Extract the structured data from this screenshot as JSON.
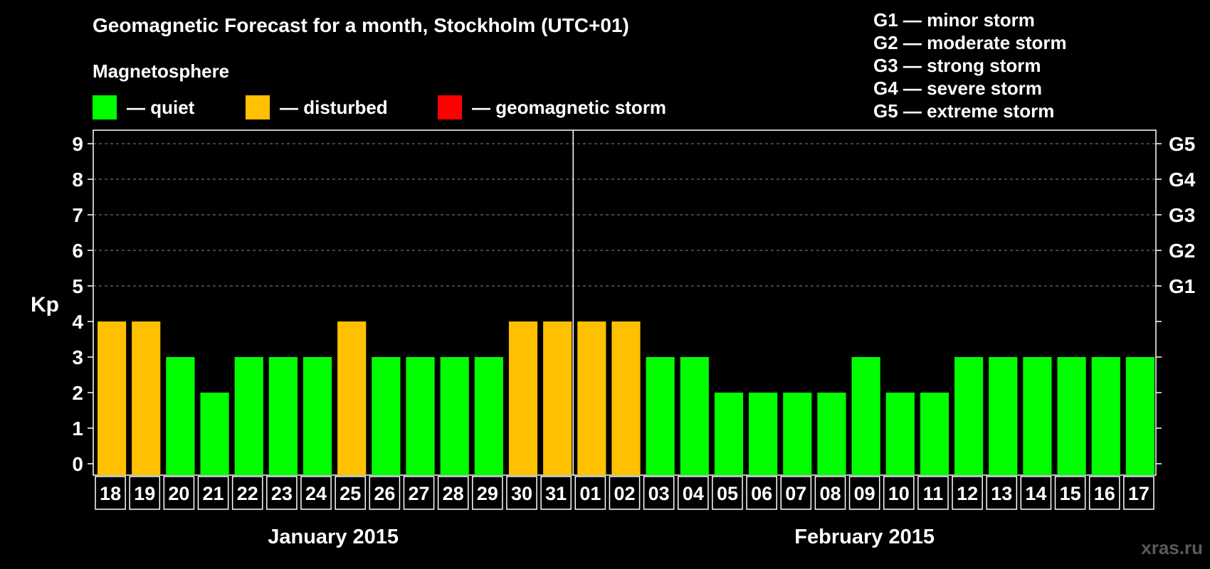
{
  "title": "Geomagnetic Forecast for a month, Stockholm (UTC+01)",
  "magnetosphere_label": "Magnetosphere",
  "legend": [
    {
      "label": "— quiet",
      "color": "#00ff00"
    },
    {
      "label": "— disturbed",
      "color": "#ffc000"
    },
    {
      "label": "— geomagnetic storm",
      "color": "#ff0000"
    }
  ],
  "g_scale_legend": [
    "G1 — minor storm",
    "G2 — moderate storm",
    "G3 — strong storm",
    "G4 — severe storm",
    "G5 — extreme storm"
  ],
  "watermark": "xras.ru",
  "chart_data": {
    "type": "bar",
    "title": "Geomagnetic Forecast for a month, Stockholm (UTC+01)",
    "ylabel": "Kp",
    "ylim": [
      0,
      9
    ],
    "yticks": [
      "0",
      "1",
      "2",
      "3",
      "4",
      "5",
      "6",
      "7",
      "8",
      "9"
    ],
    "right_ticks": [
      {
        "kp": 5,
        "label": "G1"
      },
      {
        "kp": 6,
        "label": "G2"
      },
      {
        "kp": 7,
        "label": "G3"
      },
      {
        "kp": 8,
        "label": "G4"
      },
      {
        "kp": 9,
        "label": "G5"
      }
    ],
    "grid": "dashed horizontal at Kp 5–9",
    "months": [
      "January 2015",
      "February 2015"
    ],
    "categories": [
      "18",
      "19",
      "20",
      "21",
      "22",
      "23",
      "24",
      "25",
      "26",
      "27",
      "28",
      "29",
      "30",
      "31",
      "01",
      "02",
      "03",
      "04",
      "05",
      "06",
      "07",
      "08",
      "09",
      "10",
      "11",
      "12",
      "13",
      "14",
      "15",
      "16",
      "17"
    ],
    "values": [
      4,
      4,
      3,
      2,
      3,
      3,
      3,
      4,
      3,
      3,
      3,
      3,
      4,
      4,
      4,
      4,
      3,
      3,
      2,
      2,
      2,
      2,
      3,
      2,
      2,
      3,
      3,
      3,
      3,
      3,
      3
    ],
    "colors": {
      "quiet": "#00ff00",
      "disturbed": "#ffc000",
      "storm": "#ff0000"
    }
  }
}
